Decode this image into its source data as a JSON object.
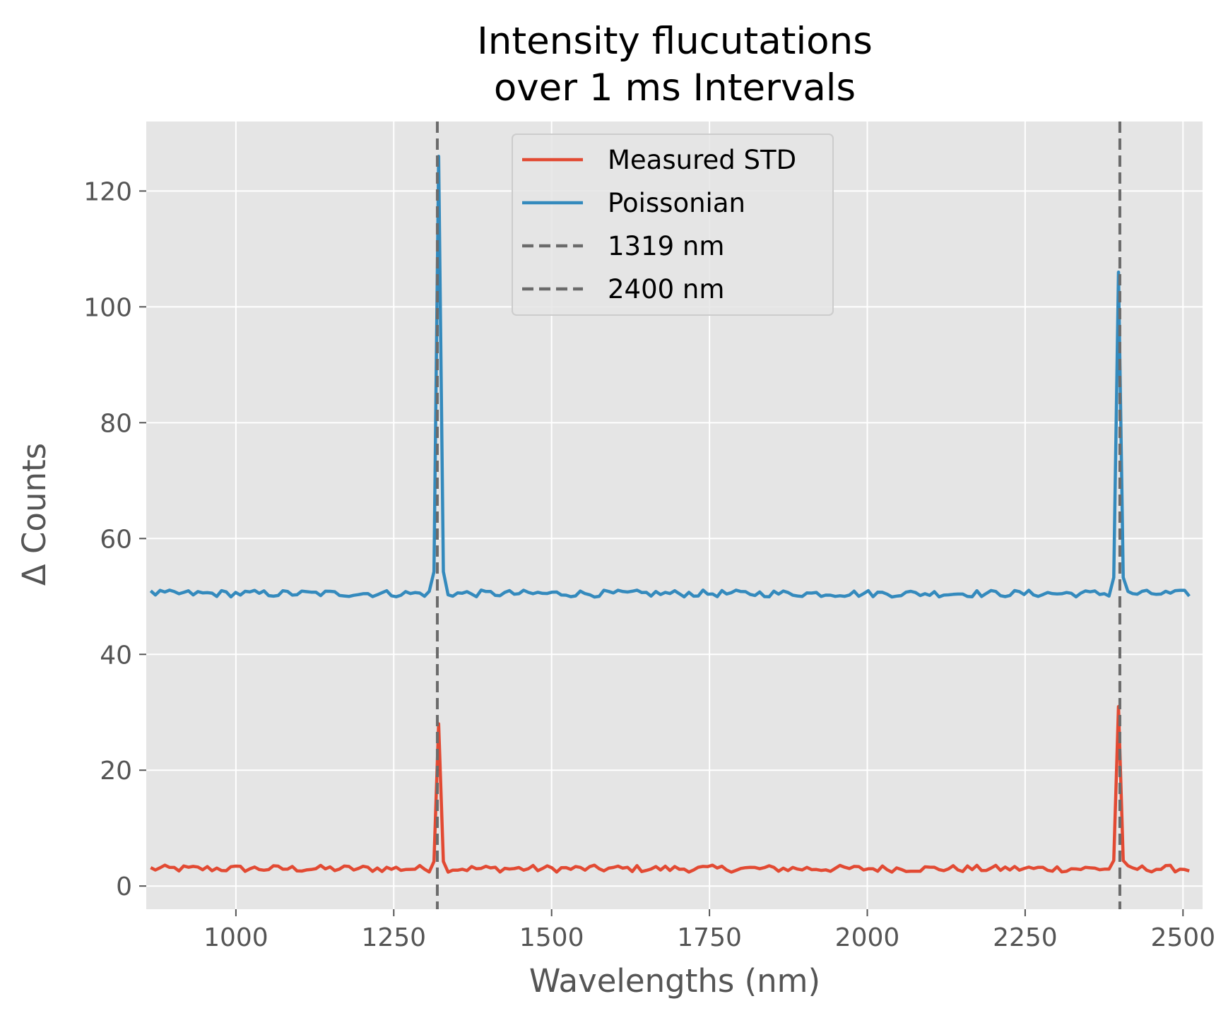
{
  "chart_data": {
    "type": "line",
    "title": [
      "Intensity flucutations",
      "over 1 ms Intervals"
    ],
    "xlabel": "Wavelengths (nm)",
    "ylabel": "Δ Counts",
    "xlim": [
      858,
      2531
    ],
    "ylim": [
      -4,
      132
    ],
    "xticks": [
      1000,
      1250,
      1500,
      1750,
      2000,
      2250,
      2500
    ],
    "yticks": [
      0,
      20,
      40,
      60,
      80,
      100,
      120
    ],
    "grid": true,
    "legend": {
      "placement": "upper-center"
    },
    "x_range": [
      865,
      2510
    ],
    "points": 221,
    "series": [
      {
        "name": "Measured STD",
        "color": "#E24A33",
        "baseline": 3.0,
        "noise": 0.6,
        "peaks": [
          {
            "x": 1319,
            "y": 28
          },
          {
            "x": 2400,
            "y": 31
          }
        ]
      },
      {
        "name": "Poissonian",
        "color": "#348ABD",
        "baseline": 50.5,
        "noise": 0.6,
        "peaks": [
          {
            "x": 1319,
            "y": 126
          },
          {
            "x": 2400,
            "y": 106
          }
        ]
      }
    ],
    "vlines": [
      {
        "name": "1319 nm",
        "x": 1319,
        "color": "#6b6b6b",
        "style": "dashed"
      },
      {
        "name": "2400 nm",
        "x": 2400,
        "color": "#6b6b6b",
        "style": "dashed"
      }
    ],
    "colors": {
      "plot_background": "#E5E5E5",
      "grid": "#FFFFFF",
      "legend_border": "#CCCCCC"
    }
  }
}
